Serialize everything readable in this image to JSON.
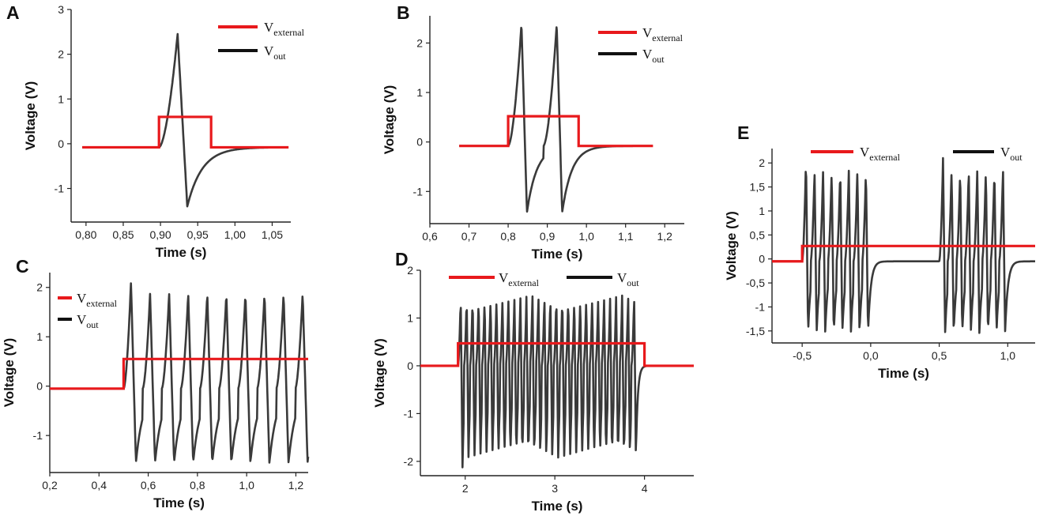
{
  "colors": {
    "external": "#e8191c",
    "out": "#3a3a3a"
  },
  "legend": {
    "v_symbol": "V",
    "external_sub": "external",
    "out_sub": "out"
  },
  "chart_data": [
    {
      "panel": "A",
      "type": "line",
      "xlabel": "Time (s)",
      "ylabel": "Voltage (V)",
      "xlim": [
        0.78,
        1.075
      ],
      "ylim": [
        -1.75,
        3.0
      ],
      "xticks": [
        0.8,
        0.85,
        0.9,
        0.95,
        1.0,
        1.05
      ],
      "xtick_labels": [
        "0,80",
        "0,85",
        "0,90",
        "0,95",
        "1,00",
        "1,05"
      ],
      "yticks": [
        -1,
        0,
        1,
        2,
        3
      ],
      "ytick_labels": [
        "-1",
        "0",
        "1",
        "2",
        "3"
      ],
      "series": [
        {
          "name": "Vexternal",
          "shape": "step",
          "base": -0.08,
          "high": 0.6,
          "steps": [
            [
              0.898,
              0.968
            ]
          ],
          "x_start": 0.795,
          "x_end": 1.072
        },
        {
          "name": "Vout",
          "shape": "spikes",
          "base": -0.08,
          "x_start": 0.795,
          "x_end": 1.045,
          "starts": [
            0.898
          ],
          "rise": 0.025,
          "peak": 2.45,
          "trough": -1.4,
          "fall_dur": 0.013,
          "tau": 0.02,
          "spikes_per_burst": 1,
          "last_stop": 0.968
        }
      ]
    },
    {
      "panel": "B",
      "type": "line",
      "xlabel": "Time (s)",
      "ylabel": "Voltage (V)",
      "xlim": [
        0.6,
        1.25
      ],
      "ylim": [
        -1.65,
        2.55
      ],
      "xticks": [
        0.6,
        0.7,
        0.8,
        0.9,
        1.0,
        1.1,
        1.2
      ],
      "xtick_labels": [
        "0,6",
        "0,7",
        "0,8",
        "0,9",
        "1,0",
        "1,1",
        "1,2"
      ],
      "yticks": [
        -1,
        0,
        1,
        2
      ],
      "ytick_labels": [
        "-1",
        "0",
        "1",
        "2"
      ],
      "series": [
        {
          "name": "Vexternal",
          "shape": "step",
          "base": -0.08,
          "high": 0.52,
          "steps": [
            [
              0.8,
              0.98
            ]
          ],
          "x_start": 0.675,
          "x_end": 1.17
        },
        {
          "name": "Vout",
          "shape": "spikes",
          "base": -0.08,
          "x_start": 0.675,
          "x_end": 1.17,
          "starts": [
            0.8
          ],
          "rise": 0.034,
          "peak": 2.38,
          "trough": -1.42,
          "fall_dur": 0.014,
          "tau": 0.025,
          "period": 0.09,
          "spikes_per_burst": 2,
          "last_stop": 0.98
        }
      ]
    },
    {
      "panel": "C",
      "type": "line",
      "xlabel": "Time (s)",
      "ylabel": "Voltage (V)",
      "xlim": [
        0.2,
        1.25
      ],
      "ylim": [
        -1.75,
        2.3
      ],
      "xticks": [
        0.2,
        0.4,
        0.6,
        0.8,
        1.0,
        1.2
      ],
      "xtick_labels": [
        "0,2",
        "0,4",
        "0,6",
        "0,8",
        "1,0",
        "1,2"
      ],
      "yticks": [
        -1,
        0,
        1,
        2
      ],
      "ytick_labels": [
        "-1",
        "0",
        "1",
        "2"
      ],
      "series": [
        {
          "name": "Vexternal",
          "shape": "step",
          "base": -0.05,
          "high": 0.55,
          "steps": [
            [
              0.5,
              1.3
            ]
          ],
          "x_start": 0.2,
          "x_end": 1.25
        },
        {
          "name": "Vout",
          "shape": "spikes",
          "base": -0.05,
          "x_start": 0.2,
          "x_end": 1.25,
          "starts": [
            0.5
          ],
          "rise": 0.03,
          "peak": 1.88,
          "first_peak": 2.12,
          "trough": -1.55,
          "fall_dur": 0.02,
          "tau": 0.03,
          "period": 0.0775,
          "spikes_per_burst": 10,
          "last_stop": 1.3
        }
      ]
    },
    {
      "panel": "D",
      "type": "line",
      "xlabel": "Time (s)",
      "ylabel": "Voltage (V)",
      "xlim": [
        1.5,
        4.55
      ],
      "ylim": [
        -2.3,
        2.0
      ],
      "xticks": [
        2,
        3,
        4
      ],
      "xtick_labels": [
        "2",
        "3",
        "4"
      ],
      "yticks": [
        -2,
        -1,
        0,
        1,
        2
      ],
      "ytick_labels": [
        "-2",
        "-1",
        "0",
        "1",
        "2"
      ],
      "series": [
        {
          "name": "Vexternal",
          "shape": "step",
          "base": 0.0,
          "high": 0.47,
          "steps": [
            [
              1.92,
              4.0
            ]
          ],
          "x_start": 1.5,
          "x_end": 4.55
        },
        {
          "name": "Vout",
          "shape": "spikes",
          "base": 0.0,
          "x_start": 1.5,
          "x_end": 4.55,
          "starts": [
            1.92
          ],
          "rise": 0.03,
          "peak": 1.47,
          "trough": -1.92,
          "first_trough": -2.18,
          "fall_dur": 0.02,
          "tau": 0.02,
          "period": 0.0667,
          "spikes_per_burst": 30,
          "last_stop": 4.0
        }
      ]
    },
    {
      "panel": "E",
      "type": "line",
      "xlabel": "Time (s)",
      "ylabel": "Voltage (V)",
      "xlim": [
        -0.72,
        1.2
      ],
      "ylim": [
        -1.75,
        2.3
      ],
      "xticks": [
        -0.5,
        0.0,
        0.5,
        1.0
      ],
      "xtick_labels": [
        "-0,5",
        "0,0",
        "0,5",
        "1,0"
      ],
      "yticks": [
        -1.5,
        -1,
        -0.5,
        0,
        0.5,
        1,
        1.5,
        2
      ],
      "ytick_labels": [
        "-1,5",
        "-1",
        "-0,5",
        "0",
        "0,5",
        "1",
        "1,5",
        "2"
      ],
      "series": [
        {
          "name": "Vexternal",
          "shape": "step",
          "base": -0.05,
          "high": 0.27,
          "steps": [
            [
              -0.5,
              1.3
            ]
          ],
          "x_start": -0.72,
          "x_end": 1.2
        },
        {
          "name": "Vout",
          "shape": "spikes",
          "base": -0.05,
          "x_start": -0.72,
          "x_end": 1.2,
          "starts": [
            -0.5,
            0.5
          ],
          "rise": 0.028,
          "peak": 1.87,
          "first_peak": 2.1,
          "trough": -1.55,
          "fall_dur": 0.015,
          "tau": 0.02,
          "period": 0.0625,
          "spikes_per_burst": 8,
          "last_stop": 1.3
        }
      ]
    }
  ]
}
